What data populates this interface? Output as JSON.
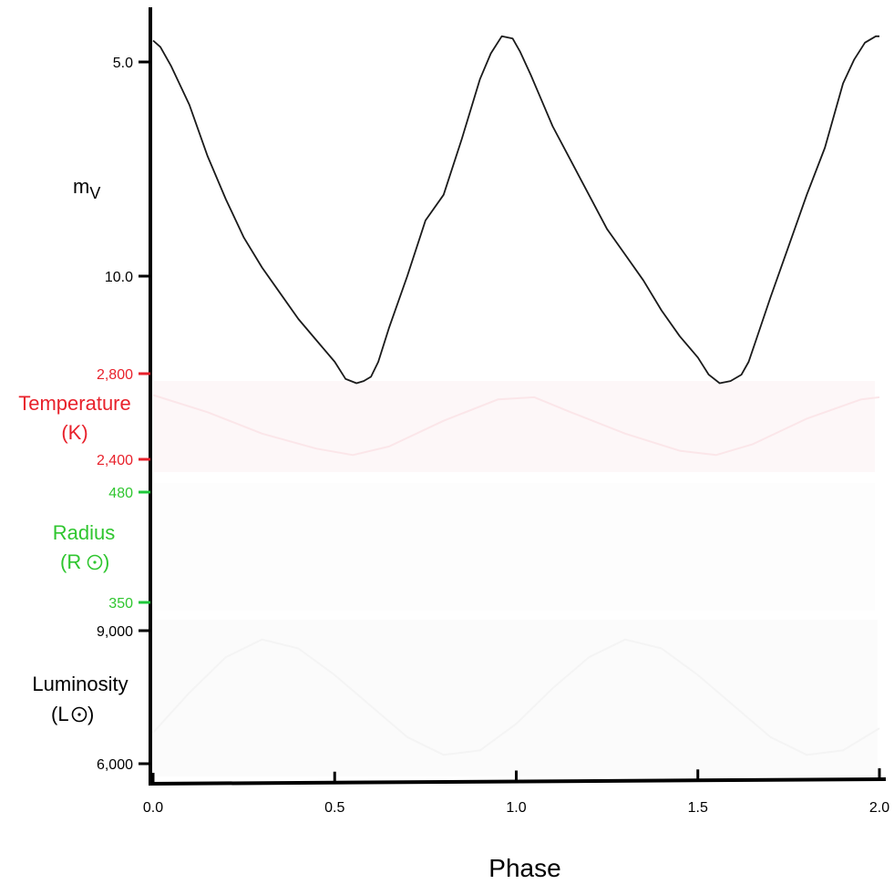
{
  "chart_data": {
    "type": "line",
    "xlabel": "Phase",
    "x_ticks": [
      "0.0",
      "0.5",
      "1.0",
      "1.5",
      "2.0"
    ],
    "xlim": [
      0.0,
      2.0
    ],
    "grid": false,
    "panels": [
      {
        "key": "magnitude",
        "label_main": "m",
        "label_sub": "V",
        "label_color": "#000000",
        "ticks": [
          "5.0",
          "10.0"
        ],
        "tick_values": [
          5.0,
          10.0
        ],
        "ylim": [
          3.8,
          12.2
        ],
        "inverted": true,
        "series": [
          {
            "color": "#1a1a1a",
            "x": [
              0.0,
              0.02,
              0.05,
              0.1,
              0.15,
              0.2,
              0.25,
              0.3,
              0.35,
              0.4,
              0.45,
              0.5,
              0.53,
              0.56,
              0.58,
              0.6,
              0.62,
              0.65,
              0.7,
              0.75,
              0.8,
              0.85,
              0.9,
              0.93,
              0.96,
              0.99,
              1.01,
              1.04,
              1.07,
              1.1,
              1.15,
              1.2,
              1.25,
              1.3,
              1.35,
              1.4,
              1.45,
              1.5,
              1.53,
              1.56,
              1.59,
              1.62,
              1.64,
              1.66,
              1.7,
              1.75,
              1.8,
              1.85,
              1.9,
              1.93,
              1.96,
              1.99,
              2.0
            ],
            "y": [
              4.5,
              4.65,
              5.1,
              6.0,
              7.2,
              8.2,
              9.1,
              9.8,
              10.4,
              11.0,
              11.5,
              12.0,
              12.4,
              12.5,
              12.45,
              12.35,
              12.0,
              11.2,
              10.0,
              8.7,
              8.1,
              6.8,
              5.4,
              4.8,
              4.4,
              4.45,
              4.75,
              5.3,
              5.9,
              6.5,
              7.3,
              8.1,
              8.9,
              9.5,
              10.1,
              10.8,
              11.4,
              11.9,
              12.3,
              12.5,
              12.45,
              12.3,
              12.0,
              11.5,
              10.5,
              9.3,
              8.1,
              7.0,
              5.5,
              4.95,
              4.55,
              4.4,
              4.4
            ]
          }
        ]
      },
      {
        "key": "temperature",
        "label_line1": "Temperature",
        "label_line2": "(K)",
        "label_color": "#e8212b",
        "ticks": [
          "2,800",
          "2,400"
        ],
        "tick_values": [
          2800,
          2400
        ],
        "ylim": [
          2400,
          2800
        ],
        "series": [
          {
            "color": "#fbe6e9",
            "x": [
              0.0,
              0.15,
              0.3,
              0.45,
              0.55,
              0.65,
              0.8,
              0.95,
              1.05,
              1.15,
              1.3,
              1.45,
              1.55,
              1.65,
              1.8,
              1.95,
              2.0
            ],
            "y": [
              2700,
              2620,
              2520,
              2450,
              2420,
              2460,
              2580,
              2680,
              2690,
              2620,
              2520,
              2440,
              2420,
              2470,
              2590,
              2680,
              2690
            ]
          }
        ]
      },
      {
        "key": "radius",
        "label_line1": "Radius",
        "label_line2": "(R",
        "label_line2_end": ")",
        "label_color": "#2fc62f",
        "ticks": [
          "480",
          "350"
        ],
        "tick_values": [
          480,
          350
        ],
        "ylim": [
          350,
          480
        ],
        "series": []
      },
      {
        "key": "luminosity",
        "label_line1": "Luminosity",
        "label_line2": "(L",
        "label_line2_end": ")",
        "label_color": "#000000",
        "ticks": [
          "9,000",
          "6,000"
        ],
        "tick_values": [
          9000,
          6000
        ],
        "ylim": [
          6000,
          9000
        ],
        "series": [
          {
            "color": "#f4f4f4",
            "x": [
              0.0,
              0.1,
              0.2,
              0.3,
              0.4,
              0.5,
              0.6,
              0.7,
              0.8,
              0.9,
              1.0,
              1.1,
              1.2,
              1.3,
              1.4,
              1.5,
              1.6,
              1.7,
              1.8,
              1.9,
              2.0
            ],
            "y": [
              6700,
              7600,
              8400,
              8800,
              8600,
              8000,
              7300,
              6600,
              6200,
              6300,
              6900,
              7700,
              8400,
              8800,
              8600,
              8000,
              7300,
              6600,
              6200,
              6300,
              6800
            ]
          }
        ]
      }
    ],
    "tick_colors": {
      "magnitude": "#000000",
      "temperature": "#e8212b",
      "radius": "#1ec83a",
      "luminosity": "#000000"
    }
  }
}
